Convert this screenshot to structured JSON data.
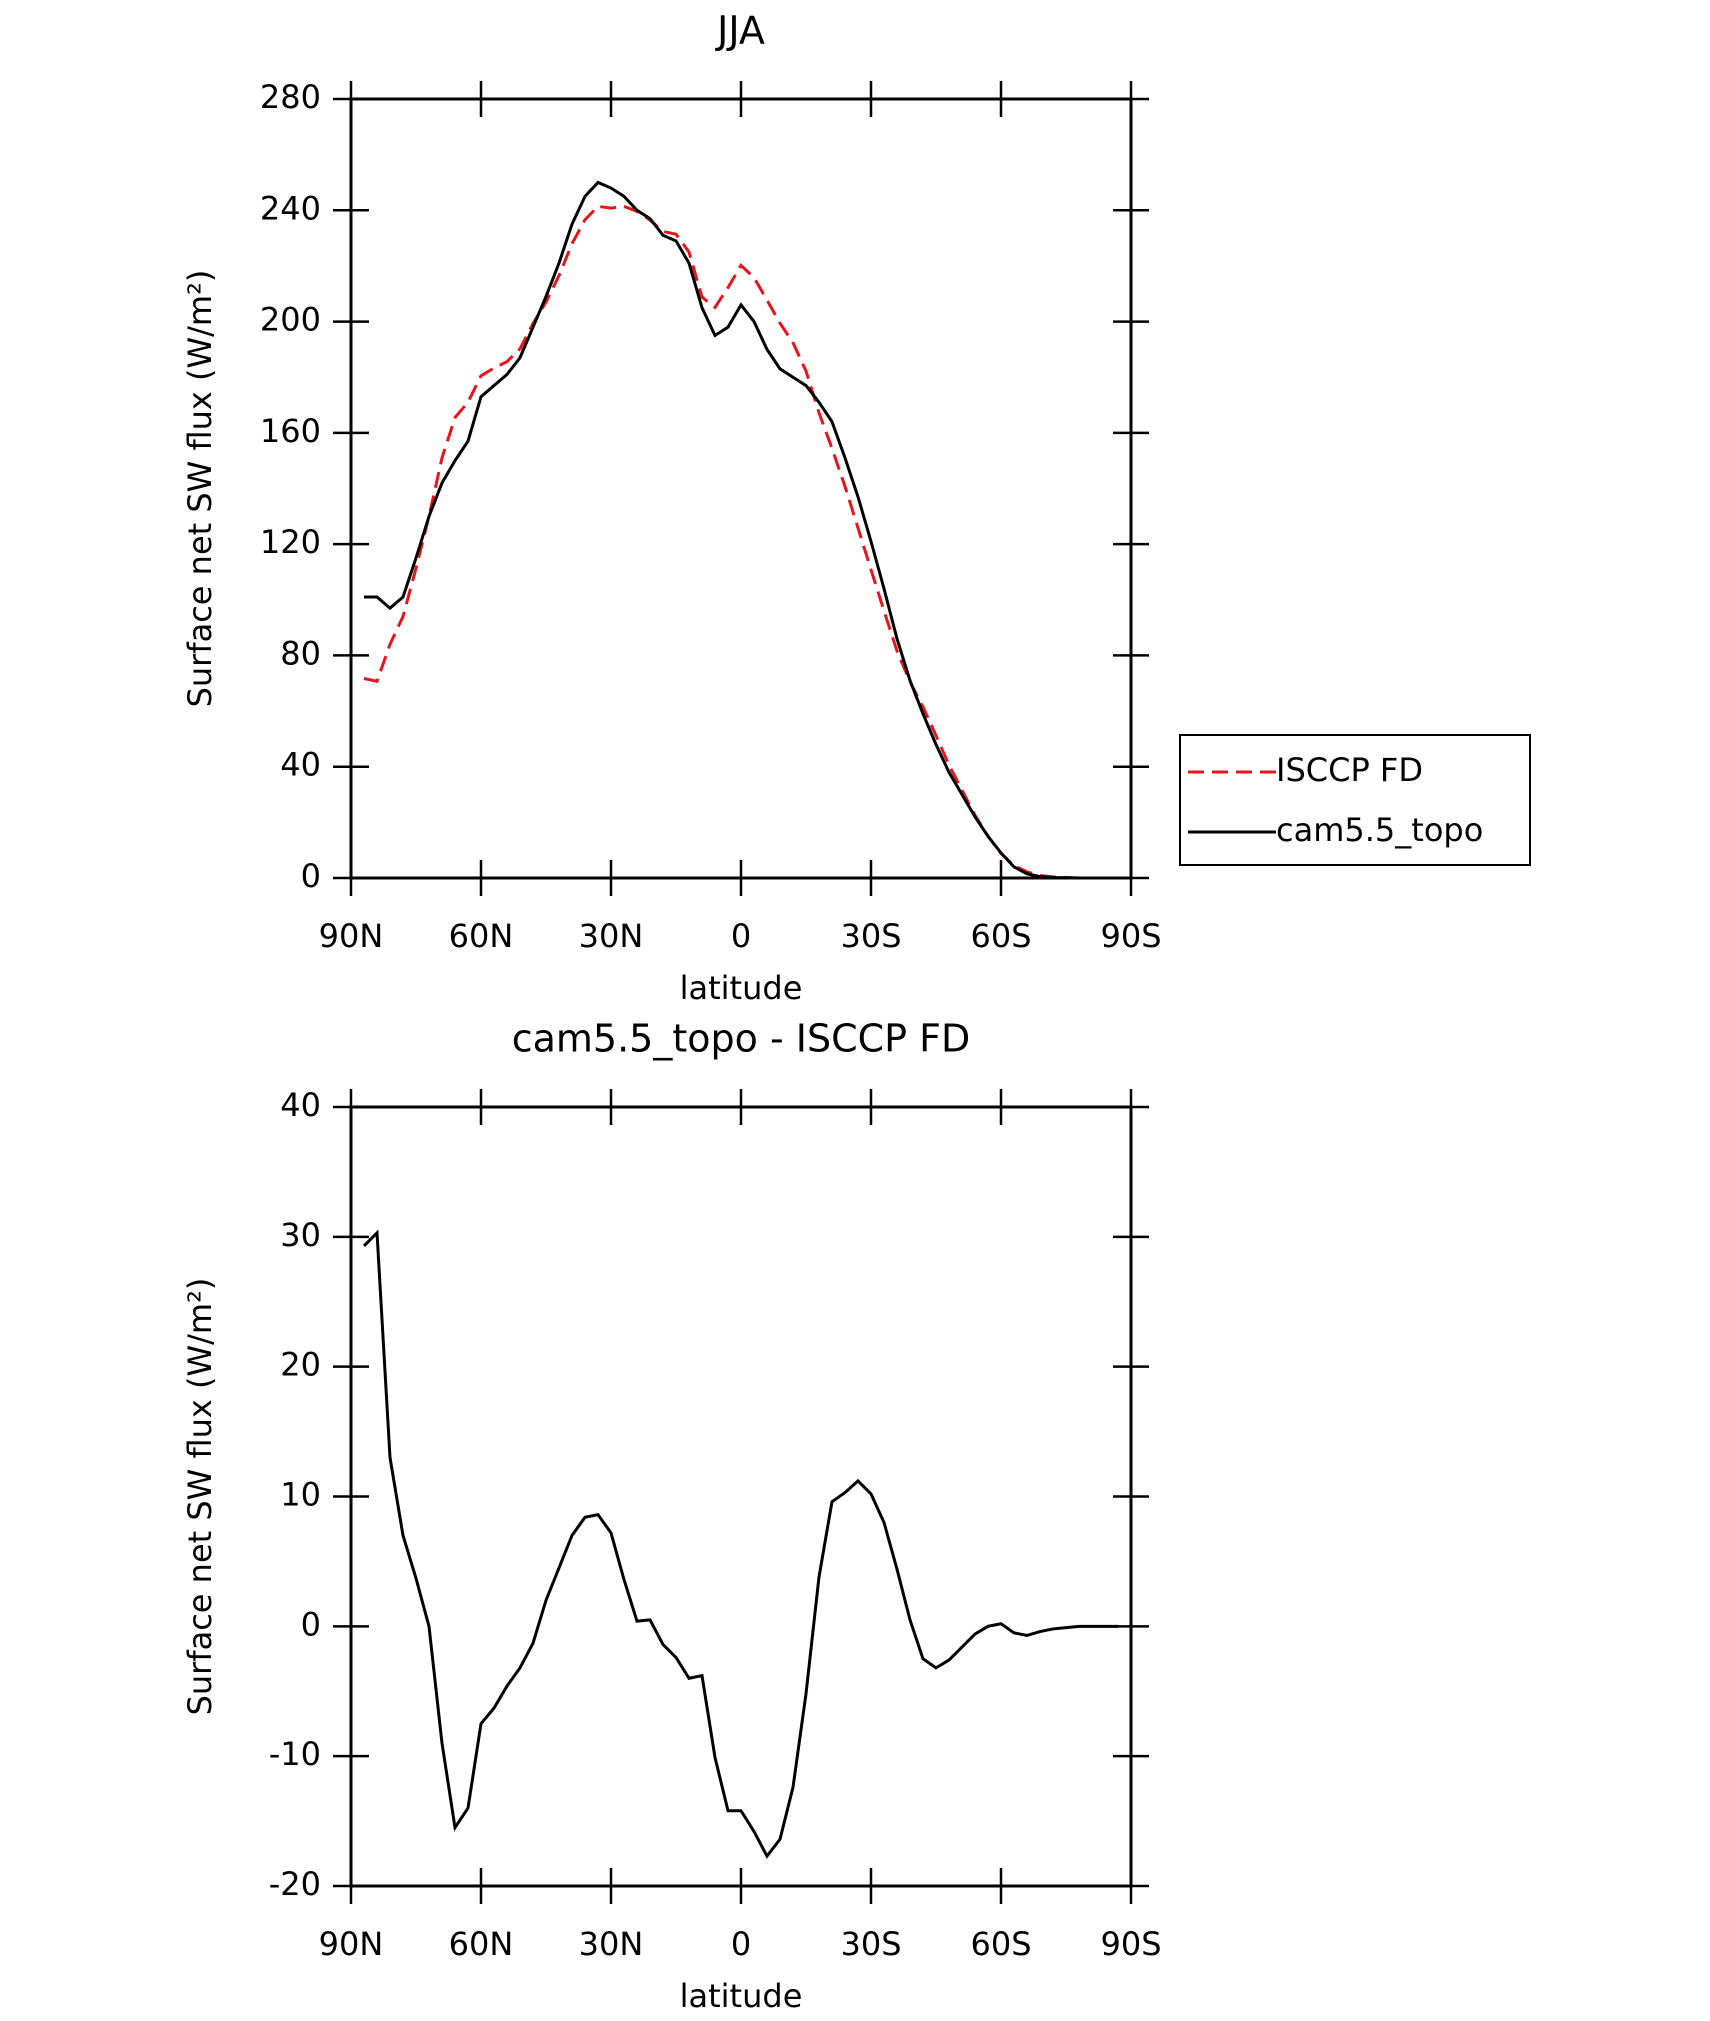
{
  "chart_data": [
    {
      "type": "line",
      "title": "JJA",
      "xlabel": "latitude",
      "ylabel": "Surface net SW flux (W/m²)",
      "x": [
        87,
        84,
        81,
        78,
        75,
        72,
        69,
        66,
        63,
        60,
        57,
        54,
        51,
        48,
        45,
        42,
        39,
        36,
        33,
        30,
        27,
        24,
        21,
        18,
        15,
        12,
        9,
        6,
        3,
        0,
        -3,
        -6,
        -9,
        -12,
        -15,
        -18,
        -21,
        -24,
        -27,
        -30,
        -33,
        -36,
        -39,
        -42,
        -45,
        -48,
        -51,
        -54,
        -57,
        -60,
        -63,
        -66,
        -69,
        -72,
        -75,
        -78,
        -81,
        -84,
        -87
      ],
      "series": [
        {
          "name": "ISCCP FD",
          "color": "#e8141c",
          "dash": true,
          "values": [
            71.7,
            70.7,
            84,
            94,
            111.3,
            130,
            151,
            165.5,
            171,
            180.5,
            183.3,
            185.6,
            190.2,
            199.3,
            207,
            216.5,
            228,
            236.6,
            241.4,
            240.8,
            241.4,
            239.6,
            236.5,
            232.4,
            231.4,
            225,
            208.8,
            205.1,
            212.2,
            220.2,
            215.8,
            207.7,
            199.4,
            192.4,
            182.2,
            167.2,
            154.4,
            140.7,
            125.8,
            110.8,
            96,
            81.6,
            70.5,
            61.5,
            51.2,
            40.6,
            31.6,
            22.6,
            15,
            8.8,
            4.5,
            2.2,
            0.9,
            0.4,
            0.2,
            0,
            0,
            0,
            0
          ]
        },
        {
          "name": "cam5.5_topo",
          "color": "#000000",
          "dash": false,
          "values": [
            101,
            101,
            97,
            101,
            115,
            130,
            142,
            150,
            157,
            173,
            177,
            181,
            187,
            198,
            209,
            221,
            235,
            245,
            250,
            248,
            245,
            240,
            237,
            231,
            229,
            221,
            205,
            195,
            198,
            206,
            200,
            190,
            183,
            180,
            177,
            171,
            164,
            151,
            137,
            121,
            104,
            86,
            71,
            59,
            48,
            38,
            30,
            22,
            15,
            9,
            4,
            1.5,
            0.5,
            0.2,
            0.1,
            0,
            0,
            0,
            0
          ]
        }
      ],
      "xlim": [
        90,
        -90
      ],
      "xticks": [
        {
          "value": 90,
          "label": "90N"
        },
        {
          "value": 60,
          "label": "60N"
        },
        {
          "value": 30,
          "label": "30N"
        },
        0,
        {
          "value": -30,
          "label": "30S"
        },
        {
          "value": -60,
          "label": "60S"
        },
        {
          "value": -90,
          "label": "90S"
        }
      ],
      "ylim": [
        0,
        280
      ],
      "yticks": [
        0,
        40,
        80,
        120,
        160,
        200,
        240,
        280
      ],
      "legend": "right"
    },
    {
      "type": "line",
      "title": "cam5.5_topo - ISCCP FD",
      "xlabel": "latitude",
      "ylabel": "Surface net SW flux (W/m²)",
      "x": [
        87,
        84,
        81,
        78,
        75,
        72,
        69,
        66,
        63,
        60,
        57,
        54,
        51,
        48,
        45,
        42,
        39,
        36,
        33,
        30,
        27,
        24,
        21,
        18,
        15,
        12,
        9,
        6,
        3,
        0,
        -3,
        -6,
        -9,
        -12,
        -15,
        -18,
        -21,
        -24,
        -27,
        -30,
        -33,
        -36,
        -39,
        -42,
        -45,
        -48,
        -51,
        -54,
        -57,
        -60,
        -63,
        -66,
        -69,
        -72,
        -75,
        -78,
        -81,
        -84,
        -87
      ],
      "series": [
        {
          "color": "#000000",
          "dash": false,
          "values": [
            29.3,
            30.3,
            13,
            7,
            3.7,
            0,
            -9,
            -15.5,
            -14,
            -7.5,
            -6.3,
            -4.6,
            -3.2,
            -1.3,
            2,
            4.5,
            7,
            8.4,
            8.6,
            7.2,
            3.6,
            0.4,
            0.5,
            -1.4,
            -2.4,
            -4,
            -3.8,
            -10.1,
            -14.2,
            -14.2,
            -15.8,
            -17.7,
            -16.4,
            -12.4,
            -5.2,
            3.8,
            9.6,
            10.3,
            11.2,
            10.2,
            8,
            4.4,
            0.5,
            -2.5,
            -3.2,
            -2.6,
            -1.6,
            -0.6,
            0,
            0.2,
            -0.5,
            -0.7,
            -0.4,
            -0.2,
            -0.1,
            0,
            0,
            0,
            0
          ]
        }
      ],
      "xlim": [
        90,
        -90
      ],
      "xticks": [
        {
          "value": 90,
          "label": "90N"
        },
        {
          "value": 60,
          "label": "60N"
        },
        {
          "value": 30,
          "label": "30N"
        },
        0,
        {
          "value": -30,
          "label": "30S"
        },
        {
          "value": -60,
          "label": "60S"
        },
        {
          "value": -90,
          "label": "90S"
        }
      ],
      "ylim": [
        -20,
        40
      ],
      "yticks": [
        -20,
        -10,
        0,
        10,
        20,
        30,
        40
      ]
    }
  ]
}
